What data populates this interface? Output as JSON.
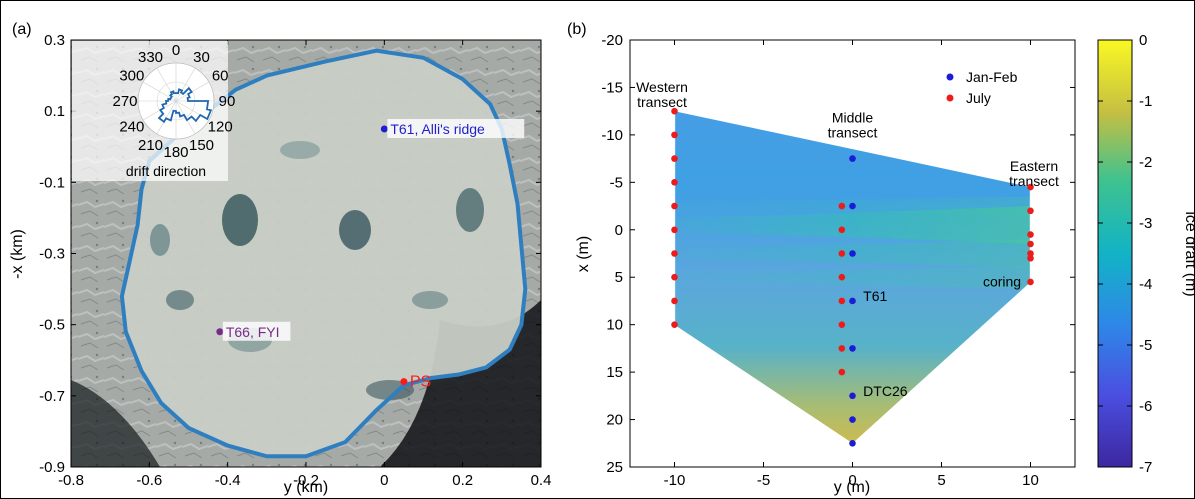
{
  "chart_data": [
    {
      "panel": "(a)",
      "type": "scatter",
      "background": "aerial photograph of an ice floe",
      "xlabel": "y (km)",
      "ylabel": "-x (km)",
      "xlim": [
        -0.8,
        0.4
      ],
      "ylim": [
        -0.9,
        0.3
      ],
      "xticks": [
        "-0.8",
        "-0.6",
        "-0.4",
        "-0.2",
        "0",
        "0.2",
        "0.4"
      ],
      "yticks": [
        "0.3",
        "0.1",
        "-0.1",
        "-0.3",
        "-0.5",
        "-0.7",
        "-0.9"
      ],
      "floe_outline_color": "#2f7fc0",
      "points": [
        {
          "label": "T61, Alli's ridge",
          "x": 0.0,
          "y": 0.05,
          "color": "#1f1fd0"
        },
        {
          "label": "T66, FYI",
          "x": -0.42,
          "y": -0.52,
          "color": "#7a2a8c"
        },
        {
          "label": "PS",
          "x": 0.05,
          "y": -0.66,
          "color": "#ff1a1a"
        }
      ],
      "inset": {
        "label": "drift direction",
        "type": "polar-histogram",
        "angle_labels": [
          "0",
          "30",
          "60",
          "90",
          "120",
          "150",
          "180",
          "210",
          "240",
          "270",
          "300",
          "330"
        ]
      }
    },
    {
      "panel": "(b)",
      "type": "scatter",
      "xlabel": "y (m)",
      "ylabel": "x (m)",
      "xlim": [
        -12.5,
        12.5
      ],
      "ylim": [
        -20,
        25
      ],
      "xticks": [
        "-10",
        "-5",
        "0",
        "5",
        "10"
      ],
      "yticks": [
        "-20",
        "-15",
        "-10",
        "-5",
        "0",
        "5",
        "10",
        "15",
        "20",
        "25"
      ],
      "annotations": [
        {
          "text": "Western\ntransect",
          "x": -10.7,
          "y": -14.5
        },
        {
          "text": "Middle\ntransect",
          "x": 0,
          "y": -11.3
        },
        {
          "text": "Eastern\ntransect",
          "x": 10.2,
          "y": -6.2
        },
        {
          "text": "coring",
          "x": 8.4,
          "y": 6.0
        },
        {
          "text": "T61",
          "x": 0.6,
          "y": 7.5
        },
        {
          "text": "DTC26",
          "x": 0.6,
          "y": 17.5
        }
      ],
      "legend": {
        "position": "top-right"
      },
      "series": [
        {
          "name": "Jan-Feb",
          "color": "#1c1cd6",
          "points": [
            [
              0,
              -7.5
            ],
            [
              0,
              -2.5
            ],
            [
              0,
              2.5
            ],
            [
              0,
              7.5
            ],
            [
              0,
              12.5
            ],
            [
              0,
              17.5
            ],
            [
              0,
              20
            ],
            [
              0,
              22.5
            ]
          ]
        },
        {
          "name": "July",
          "color": "#ee1b1b",
          "points": [
            [
              -10,
              -12.5
            ],
            [
              -10,
              -10
            ],
            [
              -10,
              -7.5
            ],
            [
              -10,
              -5
            ],
            [
              -10,
              -2.5
            ],
            [
              -10,
              0
            ],
            [
              -10,
              2.5
            ],
            [
              -10,
              5
            ],
            [
              -10,
              7.5
            ],
            [
              -10,
              10
            ],
            [
              -0.6,
              -2.5
            ],
            [
              -0.6,
              0
            ],
            [
              -0.6,
              2.5
            ],
            [
              -0.6,
              5
            ],
            [
              -0.6,
              7.5
            ],
            [
              -0.6,
              10
            ],
            [
              -0.6,
              12.5
            ],
            [
              -0.6,
              15
            ],
            [
              10,
              -4.5
            ],
            [
              10,
              -2
            ],
            [
              10,
              0.5
            ],
            [
              10,
              1.5
            ],
            [
              10,
              2.5
            ],
            [
              10,
              3
            ],
            [
              10,
              5.5
            ]
          ]
        }
      ],
      "colorbar": {
        "label": "ice draft (m)",
        "range": [
          -7,
          0
        ],
        "ticks": [
          "0",
          "-1",
          "-2",
          "-3",
          "-4",
          "-5",
          "-6",
          "-7"
        ]
      }
    }
  ]
}
